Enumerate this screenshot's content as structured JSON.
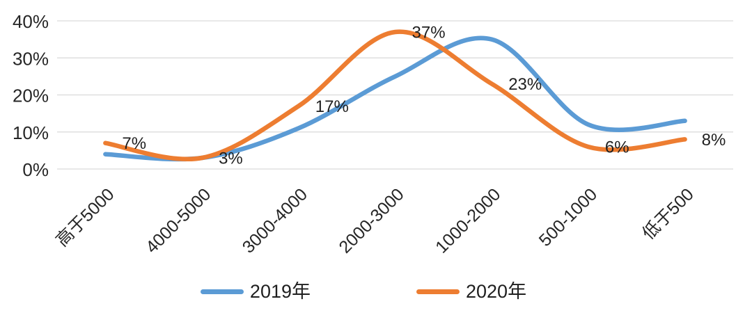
{
  "chart_data": {
    "type": "line",
    "smooth": true,
    "grid": true,
    "legend_position": "bottom",
    "categories": [
      "高于5000",
      "4000-5000",
      "3000-4000",
      "2000-3000",
      "1000-2000",
      "500-1000",
      "低于500"
    ],
    "series": [
      {
        "name": "2019年",
        "color": "#5B9BD5",
        "values": [
          4,
          3,
          11,
          25,
          35,
          12,
          13
        ],
        "data_labels": [
          "",
          "",
          "",
          "",
          "",
          "",
          ""
        ]
      },
      {
        "name": "2020年",
        "color": "#ED7D31",
        "values": [
          7,
          3,
          17,
          37,
          23,
          6,
          8
        ],
        "data_labels": [
          "7%",
          "3%",
          "17%",
          "37%",
          "23%",
          "6%",
          "8%"
        ]
      }
    ],
    "ylim": [
      0,
      40
    ],
    "yticks": [
      0,
      10,
      20,
      30,
      40
    ],
    "ytick_labels": [
      "0%",
      "10%",
      "20%",
      "30%",
      "40%"
    ]
  },
  "colors": {
    "grid": "#d9d9d9",
    "axis_text": "#262626",
    "data_label_text": "#1f1f1f",
    "background": "#ffffff",
    "series_2019": "#5B9BD5",
    "series_2020": "#ED7D31"
  }
}
